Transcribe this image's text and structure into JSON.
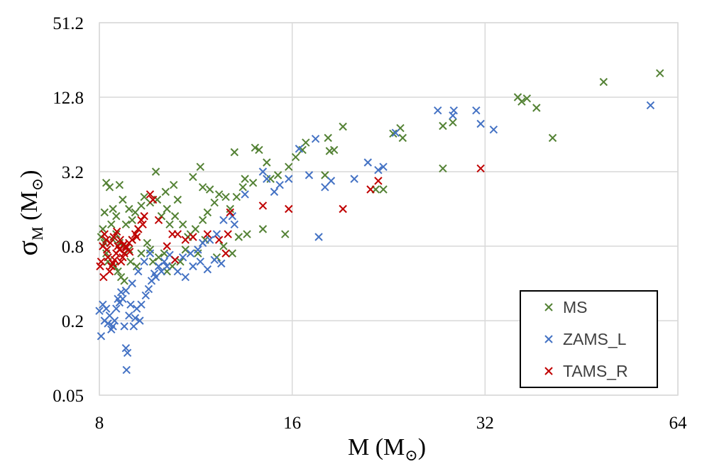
{
  "chart_data": {
    "type": "scatter",
    "title": "",
    "x_scale": "log2",
    "y_scale": "log2",
    "xlim": [
      8,
      64
    ],
    "ylim": [
      0.05,
      51.2
    ],
    "x_ticks": [
      8,
      16,
      32,
      64
    ],
    "x_tick_labels": [
      "8",
      "16",
      "32",
      "64"
    ],
    "y_ticks": [
      0.05,
      0.2,
      0.8,
      3.2,
      12.8,
      51.2
    ],
    "y_tick_labels": [
      "0.05",
      "0.2",
      "0.8",
      "3.2",
      "12.8",
      "51.2"
    ],
    "grid": true,
    "xlabel": {
      "main": "M (M",
      "sub": "⊙",
      "close": ")"
    },
    "ylabel": {
      "main": "σ",
      "sub1": "M",
      "paren": " (M",
      "sub2": "⊙",
      "close": ")"
    },
    "legend_position": "bottom-right",
    "series": [
      {
        "name": "MS",
        "color": "#548235",
        "points": [
          [
            60,
            20
          ],
          [
            49,
            17
          ],
          [
            36,
            12.8
          ],
          [
            36.5,
            11.8
          ],
          [
            37.2,
            12.5
          ],
          [
            38.5,
            10.5
          ],
          [
            40.8,
            6.0
          ],
          [
            28.5,
            8.0
          ],
          [
            27.5,
            7.5
          ],
          [
            27.5,
            3.4
          ],
          [
            23.8,
            6.0
          ],
          [
            23.6,
            7.2
          ],
          [
            23,
            6.5
          ],
          [
            22.2,
            2.3
          ],
          [
            21.6,
            2.3
          ],
          [
            19.2,
            7.4
          ],
          [
            18.2,
            6.0
          ],
          [
            18,
            3.0
          ],
          [
            18.6,
            4.8
          ],
          [
            18.3,
            4.7
          ],
          [
            16.8,
            5.5
          ],
          [
            16.6,
            4.8
          ],
          [
            16.2,
            4.2
          ],
          [
            15.8,
            3.5
          ],
          [
            15.2,
            3.0
          ],
          [
            15.6,
            1.0
          ],
          [
            14.8,
            2.8
          ],
          [
            14.6,
            3.8
          ],
          [
            14.2,
            4.8
          ],
          [
            14.0,
            5.0
          ],
          [
            13.9,
            2.6
          ],
          [
            13.5,
            2.8
          ],
          [
            13.4,
            2.4
          ],
          [
            13.1,
            2.0
          ],
          [
            13.0,
            4.6
          ],
          [
            12.8,
            1.6
          ],
          [
            12.6,
            2.0
          ],
          [
            12.3,
            2.1
          ],
          [
            12.1,
            1.8
          ],
          [
            11.8,
            1.5
          ],
          [
            11.6,
            1.3
          ],
          [
            11.3,
            1.1
          ],
          [
            11.0,
            0.95
          ],
          [
            11.9,
            2.3
          ],
          [
            11.5,
            3.5
          ],
          [
            11.2,
            2.9
          ],
          [
            11.6,
            2.4
          ],
          [
            10.8,
            1.2
          ],
          [
            11.1,
            1.0
          ],
          [
            10.6,
            1.9
          ],
          [
            10.5,
            1.4
          ],
          [
            10.2,
            1.6
          ],
          [
            10.0,
            1.4
          ],
          [
            10.3,
            1.2
          ],
          [
            9.8,
            3.2
          ],
          [
            9.6,
            1.8
          ],
          [
            9.4,
            2.0
          ],
          [
            9.3,
            1.7
          ],
          [
            9.1,
            1.5
          ],
          [
            9.0,
            1.3
          ],
          [
            8.9,
            1.6
          ],
          [
            8.7,
            1.9
          ],
          [
            8.6,
            2.5
          ],
          [
            8.5,
            1.4
          ],
          [
            8.4,
            1.6
          ],
          [
            8.35,
            1.2
          ],
          [
            8.3,
            2.4
          ],
          [
            8.2,
            2.6
          ],
          [
            8.15,
            1.5
          ],
          [
            8.1,
            1.1
          ],
          [
            8.05,
            0.95
          ],
          [
            8.4,
            0.9
          ],
          [
            8.5,
            1.0
          ],
          [
            8.6,
            0.85
          ],
          [
            8.7,
            0.8
          ],
          [
            8.8,
            1.2
          ],
          [
            8.9,
            0.75
          ],
          [
            9.0,
            0.9
          ],
          [
            9.2,
            1.1
          ],
          [
            9.3,
            0.7
          ],
          [
            9.5,
            0.85
          ],
          [
            9.6,
            0.75
          ],
          [
            9.7,
            0.6
          ],
          [
            9.9,
            0.65
          ],
          [
            10.1,
            0.7
          ],
          [
            10.4,
            0.55
          ],
          [
            10.7,
            0.6
          ],
          [
            11.4,
            0.7
          ],
          [
            12.2,
            0.65
          ],
          [
            12.9,
            0.7
          ],
          [
            13.6,
            1.0
          ],
          [
            14.4,
            1.1
          ],
          [
            8.45,
            0.55
          ],
          [
            8.55,
            0.5
          ],
          [
            8.65,
            0.45
          ],
          [
            8.75,
            0.42
          ],
          [
            8.25,
            0.6
          ],
          [
            8.2,
            0.7
          ],
          [
            8.15,
            0.85
          ],
          [
            8.95,
            0.6
          ],
          [
            9.15,
            0.55
          ],
          [
            10.2,
            0.5
          ],
          [
            10.9,
            0.75
          ],
          [
            11.7,
            0.9
          ],
          [
            12.5,
            0.8
          ],
          [
            13.2,
            0.95
          ],
          [
            9.85,
            1.9
          ],
          [
            10.15,
            2.2
          ],
          [
            10.45,
            2.5
          ]
        ]
      },
      {
        "name": "ZAMS_L",
        "color": "#4472C4",
        "points": [
          [
            58,
            11.0
          ],
          [
            33,
            7.0
          ],
          [
            31.5,
            7.8
          ],
          [
            31,
            10.0
          ],
          [
            28.6,
            10.0
          ],
          [
            28.5,
            9.1
          ],
          [
            27.0,
            10.0
          ],
          [
            23.2,
            6.6
          ],
          [
            22.2,
            3.5
          ],
          [
            21.8,
            3.3
          ],
          [
            21.0,
            3.8
          ],
          [
            20.0,
            2.8
          ],
          [
            18.4,
            2.7
          ],
          [
            18.0,
            2.4
          ],
          [
            17.6,
            0.95
          ],
          [
            17.4,
            5.9
          ],
          [
            17.0,
            3.0
          ],
          [
            16.4,
            4.9
          ],
          [
            15.8,
            2.8
          ],
          [
            15.3,
            2.5
          ],
          [
            15.0,
            2.2
          ],
          [
            14.6,
            2.8
          ],
          [
            14.4,
            3.2
          ],
          [
            13.5,
            2.1
          ],
          [
            12.9,
            1.4
          ],
          [
            12.5,
            1.3
          ],
          [
            12.2,
            1.0
          ],
          [
            11.9,
            0.9
          ],
          [
            11.6,
            0.85
          ],
          [
            11.4,
            0.75
          ],
          [
            11.1,
            0.7
          ],
          [
            10.8,
            0.65
          ],
          [
            10.5,
            0.62
          ],
          [
            10.2,
            0.55
          ],
          [
            10.0,
            0.5
          ],
          [
            9.8,
            0.45
          ],
          [
            9.6,
            0.7
          ],
          [
            9.4,
            0.6
          ],
          [
            9.2,
            0.5
          ],
          [
            9.0,
            0.4
          ],
          [
            8.8,
            0.35
          ],
          [
            8.7,
            0.3
          ],
          [
            8.6,
            0.28
          ],
          [
            8.5,
            0.25
          ],
          [
            8.45,
            0.2
          ],
          [
            8.4,
            0.18
          ],
          [
            8.35,
            0.17
          ],
          [
            8.3,
            0.22
          ],
          [
            8.25,
            0.19
          ],
          [
            8.2,
            0.25
          ],
          [
            8.15,
            0.2
          ],
          [
            8.1,
            0.27
          ],
          [
            8.05,
            0.15
          ],
          [
            8.0,
            0.24
          ],
          [
            8.75,
            0.18
          ],
          [
            8.8,
            0.12
          ],
          [
            8.85,
            0.11
          ],
          [
            8.82,
            0.08
          ],
          [
            8.9,
            0.22
          ],
          [
            9.05,
            0.18
          ],
          [
            9.1,
            0.21
          ],
          [
            9.15,
            0.25
          ],
          [
            9.3,
            0.27
          ],
          [
            9.45,
            0.32
          ],
          [
            9.55,
            0.36
          ],
          [
            9.65,
            0.42
          ],
          [
            9.75,
            0.48
          ],
          [
            9.9,
            0.55
          ],
          [
            10.1,
            0.6
          ],
          [
            10.3,
            0.68
          ],
          [
            10.6,
            0.5
          ],
          [
            10.9,
            0.45
          ],
          [
            11.2,
            0.55
          ],
          [
            11.5,
            0.6
          ],
          [
            11.8,
            0.52
          ],
          [
            12.1,
            0.62
          ],
          [
            12.4,
            0.58
          ],
          [
            13.0,
            1.2
          ],
          [
            8.55,
            0.3
          ],
          [
            8.65,
            0.34
          ],
          [
            8.95,
            0.27
          ],
          [
            9.25,
            0.2
          ]
        ]
      },
      {
        "name": "TAMS_R",
        "color": "#C00000",
        "points": [
          [
            31.5,
            3.4
          ],
          [
            21.8,
            2.7
          ],
          [
            21.2,
            2.3
          ],
          [
            19.2,
            1.6
          ],
          [
            15.8,
            1.6
          ],
          [
            14.4,
            1.7
          ],
          [
            12.8,
            1.5
          ],
          [
            12.7,
            1.0
          ],
          [
            12.3,
            0.9
          ],
          [
            11.8,
            1.0
          ],
          [
            11.2,
            0.95
          ],
          [
            10.9,
            0.9
          ],
          [
            10.6,
            1.0
          ],
          [
            10.4,
            1.0
          ],
          [
            10.2,
            0.8
          ],
          [
            9.9,
            1.3
          ],
          [
            9.7,
            1.9
          ],
          [
            9.6,
            2.1
          ],
          [
            9.4,
            1.4
          ],
          [
            9.3,
            1.3
          ],
          [
            9.2,
            1.1
          ],
          [
            9.1,
            1.0
          ],
          [
            9.0,
            0.9
          ],
          [
            8.9,
            0.85
          ],
          [
            8.8,
            0.8
          ],
          [
            8.75,
            0.7
          ],
          [
            8.7,
            0.65
          ],
          [
            8.65,
            0.6
          ],
          [
            8.6,
            0.75
          ],
          [
            8.55,
            0.8
          ],
          [
            8.5,
            0.7
          ],
          [
            8.45,
            0.62
          ],
          [
            8.4,
            0.58
          ],
          [
            8.35,
            0.55
          ],
          [
            8.3,
            0.5
          ],
          [
            8.25,
            0.65
          ],
          [
            8.2,
            0.9
          ],
          [
            8.15,
            1.0
          ],
          [
            8.1,
            0.8
          ],
          [
            8.05,
            0.6
          ],
          [
            8.02,
            0.55
          ],
          [
            8.12,
            0.45
          ],
          [
            8.22,
            0.75
          ],
          [
            8.32,
            0.85
          ],
          [
            8.42,
            0.95
          ],
          [
            8.52,
            1.05
          ],
          [
            8.62,
            0.9
          ],
          [
            8.72,
            0.82
          ],
          [
            8.82,
            0.78
          ],
          [
            8.92,
            0.72
          ],
          [
            9.15,
            0.95
          ],
          [
            9.35,
            1.2
          ],
          [
            10.5,
            0.62
          ],
          [
            12.6,
            0.7
          ]
        ]
      }
    ]
  }
}
